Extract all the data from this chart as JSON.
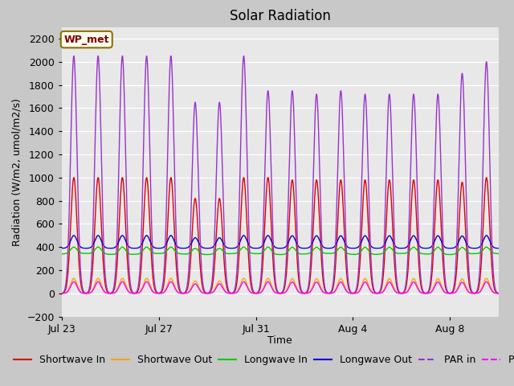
{
  "title": "Solar Radiation",
  "ylabel": "Radiation (W/m2, umol/m2/s)",
  "xlabel": "Time",
  "ylim": [
    -200,
    2300
  ],
  "n_days": 18,
  "xtick_labels": [
    "Jul 23",
    "Jul 27",
    "Jul 31",
    "Aug 4",
    "Aug 8"
  ],
  "xtick_positions": [
    0,
    4,
    8,
    12,
    16
  ],
  "ytick_vals": [
    -200,
    0,
    200,
    400,
    600,
    800,
    1000,
    1200,
    1400,
    1600,
    1800,
    2000,
    2200
  ],
  "fig_bg": "#c8c8c8",
  "plot_bg": "#e8e8e8",
  "grid_color": "#ffffff",
  "annotation_text": "WP_met",
  "annotation_bg": "#fffff0",
  "annotation_border": "#8b7000",
  "annotation_text_color": "#800000",
  "series": {
    "shortwave_in": {
      "color": "#dd0000",
      "label": "Shortwave In"
    },
    "shortwave_out": {
      "color": "#ffa500",
      "label": "Shortwave Out"
    },
    "longwave_in": {
      "color": "#00cc00",
      "label": "Longwave In"
    },
    "longwave_out": {
      "color": "#0000dd",
      "label": "Longwave Out"
    },
    "par_in": {
      "color": "#9933cc",
      "label": "PAR in"
    },
    "par_out": {
      "color": "#ff00ff",
      "label": "PAR out"
    }
  },
  "linewidth": 1.0,
  "legend_fontsize": 9,
  "title_fontsize": 12
}
